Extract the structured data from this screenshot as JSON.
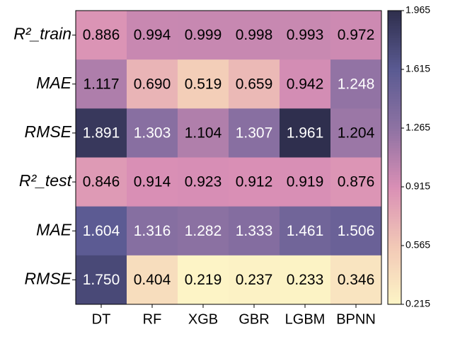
{
  "chart_data": {
    "type": "heatmap",
    "x_categories": [
      "DT",
      "RF",
      "XGB",
      "GBR",
      "LGBM",
      "BPNN"
    ],
    "y_categories": [
      "R²_train",
      "MAE",
      "RMSE",
      "R²_test",
      "MAE",
      "RMSE"
    ],
    "values": [
      [
        0.886,
        0.994,
        0.999,
        0.998,
        0.993,
        0.972
      ],
      [
        1.117,
        0.69,
        0.519,
        0.659,
        0.942,
        1.248
      ],
      [
        1.891,
        1.303,
        1.104,
        1.307,
        1.961,
        1.204
      ],
      [
        0.846,
        0.914,
        0.923,
        0.912,
        0.919,
        0.876
      ],
      [
        1.604,
        1.316,
        1.282,
        1.333,
        1.461,
        1.506
      ],
      [
        1.75,
        0.404,
        0.219,
        0.237,
        0.233,
        0.346
      ]
    ],
    "value_labels": [
      [
        "0.886",
        "0.994",
        "0.999",
        "0.998",
        "0.993",
        "0.972"
      ],
      [
        "1.117",
        "0.690",
        "0.519",
        "0.659",
        "0.942",
        "1.248"
      ],
      [
        "1.891",
        "1.303",
        "1.104",
        "1.307",
        "1.961",
        "1.204"
      ],
      [
        "0.846",
        "0.914",
        "0.923",
        "0.912",
        "0.919",
        "0.876"
      ],
      [
        "1.604",
        "1.316",
        "1.282",
        "1.333",
        "1.461",
        "1.506"
      ],
      [
        "1.750",
        "0.404",
        "0.219",
        "0.237",
        "0.233",
        "0.346"
      ]
    ],
    "clim": [
      0.215,
      1.965
    ],
    "colorbar_ticks": [
      0.215,
      0.565,
      0.915,
      1.265,
      1.615,
      1.965
    ],
    "colormap": [
      "#fdf5c6",
      "#f2c8b6",
      "#d98fb5",
      "#8e72a3",
      "#5a5a92",
      "#2f2f4d"
    ]
  }
}
